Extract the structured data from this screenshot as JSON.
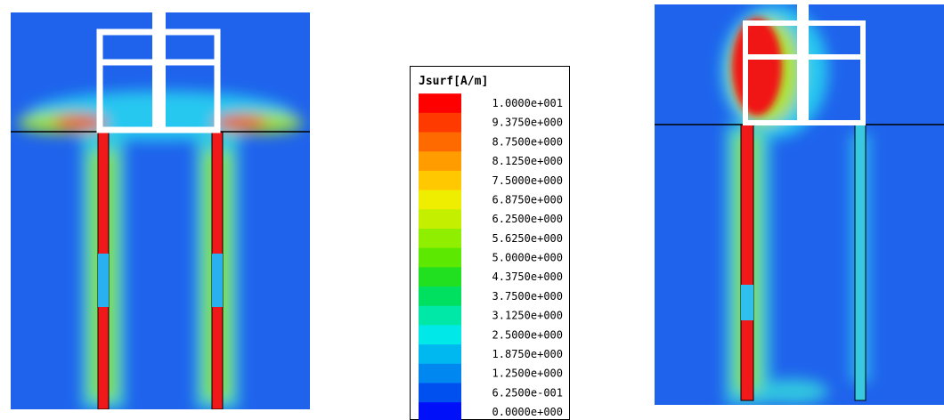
{
  "legend": {
    "title": "Jsurf[A/m]",
    "labels": [
      "1.0000e+001",
      "9.3750e+000",
      "8.7500e+000",
      "8.1250e+000",
      "7.5000e+000",
      "6.8750e+000",
      "6.2500e+000",
      "5.6250e+000",
      "5.0000e+000",
      "4.3750e+000",
      "3.7500e+000",
      "3.1250e+000",
      "2.5000e+000",
      "1.8750e+000",
      "1.2500e+000",
      "6.2500e-001",
      "0.0000e+000"
    ]
  }
}
